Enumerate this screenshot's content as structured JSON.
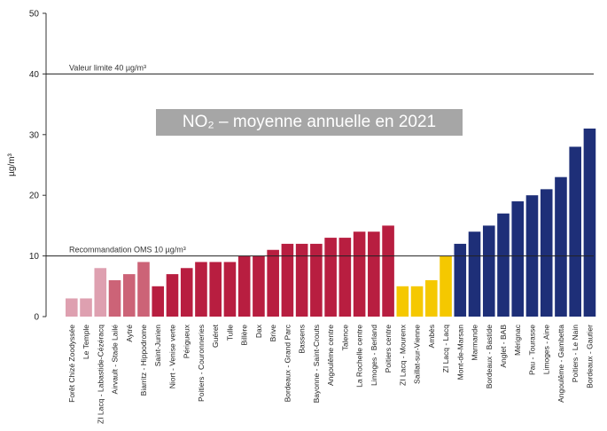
{
  "chart_data": {
    "type": "bar",
    "title": "NO₂ – moyenne annuelle en 2021",
    "ylabel": "µg/m³",
    "ylim": [
      0,
      50
    ],
    "yticks": [
      0,
      10,
      20,
      30,
      40,
      50
    ],
    "grid": false,
    "reference_lines": [
      {
        "value": 40,
        "label": "Valeur limite 40 µg/m³"
      },
      {
        "value": 10,
        "label": "Recommandation OMS 10 µg/m³"
      }
    ],
    "categories": [
      "Forêt Chizé Zoodyssée",
      "Le Temple",
      "ZI Lacq - Labastide-Cézéracq",
      "Airvault - Stade Lailé",
      "Aytré",
      "Biarritz - Hippodrome",
      "Saint-Junien",
      "Niort - Venise verte",
      "Périgueux",
      "Poitiers - Couronneries",
      "Guéret",
      "Tulle",
      "Billère",
      "Dax",
      "Brive",
      "Bordeaux - Grand Parc",
      "Bassens",
      "Bayonne - Saint-Crouts",
      "Angoulême centre",
      "Talence",
      "La Rochelle centre",
      "Limoges - Berland",
      "Poitiers centre",
      "ZI Lacq - Mourenx",
      "Saillat-sur-Vienne",
      "Ambès",
      "ZI Lacq - Lacq",
      "Mont-de-Marsan",
      "Marmande",
      "Bordeaux - Bastide",
      "Anglet - BAB",
      "Mérignac",
      "Pau - Tourasse",
      "Limoges - Aine",
      "Angoulême - Gambetta",
      "Poitiers - Le Nain",
      "Bordeaux - Gautier"
    ],
    "values": [
      3,
      3,
      8,
      6,
      7,
      9,
      5,
      7,
      8,
      9,
      9,
      9,
      10,
      10,
      11,
      12,
      12,
      12,
      13,
      13,
      14,
      14,
      15,
      5,
      5,
      6,
      10,
      12,
      14,
      15,
      17,
      19,
      20,
      21,
      23,
      28,
      31
    ],
    "colors": [
      "#dea0b0",
      "#dea0b0",
      "#dea0b0",
      "#cc6377",
      "#cc6377",
      "#cc6377",
      "#b81e40",
      "#b81e40",
      "#b81e40",
      "#b81e40",
      "#b81e40",
      "#b81e40",
      "#b81e40",
      "#b81e40",
      "#b81e40",
      "#b81e40",
      "#b81e40",
      "#b81e40",
      "#b81e40",
      "#b81e40",
      "#b81e40",
      "#b81e40",
      "#b81e40",
      "#f5c800",
      "#f5c800",
      "#f5c800",
      "#f5c800",
      "#1e2f78",
      "#1e2f78",
      "#1e2f78",
      "#1e2f78",
      "#1e2f78",
      "#1e2f78",
      "#1e2f78",
      "#1e2f78",
      "#1e2f78",
      "#1e2f78"
    ]
  }
}
